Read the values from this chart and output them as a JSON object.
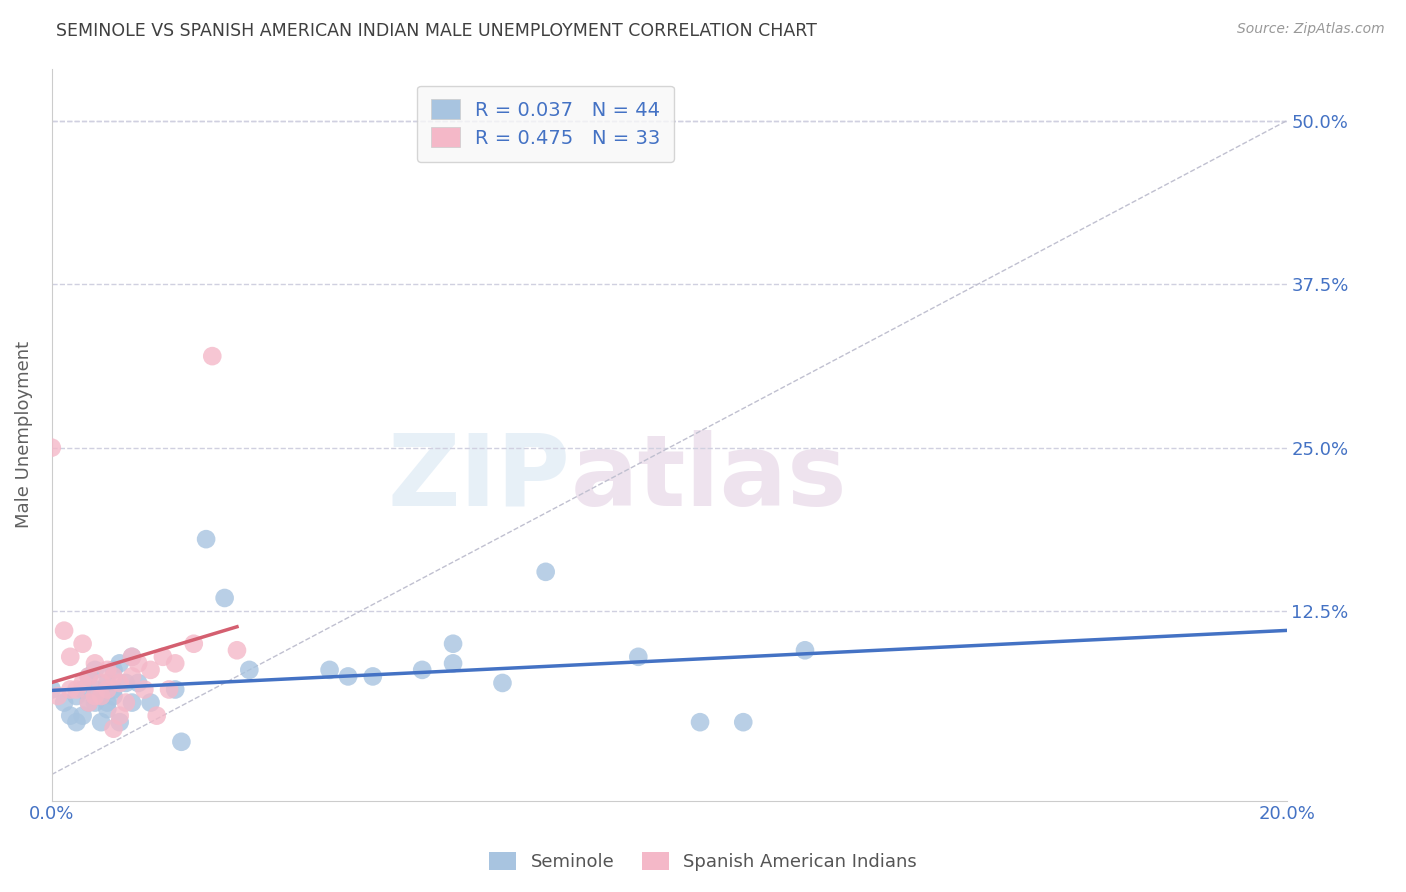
{
  "title": "SEMINOLE VS SPANISH AMERICAN INDIAN MALE UNEMPLOYMENT CORRELATION CHART",
  "source": "Source: ZipAtlas.com",
  "ylabel": "Male Unemployment",
  "xlim": [
    0.0,
    0.2
  ],
  "ylim": [
    -0.02,
    0.54
  ],
  "yticks": [
    0.0,
    0.125,
    0.25,
    0.375,
    0.5
  ],
  "ytick_labels": [
    "",
    "12.5%",
    "25.0%",
    "37.5%",
    "50.0%"
  ],
  "xticks": [
    0.0,
    0.05,
    0.1,
    0.15,
    0.2
  ],
  "xtick_labels": [
    "0.0%",
    "",
    "",
    "",
    "20.0%"
  ],
  "watermark_zip": "ZIP",
  "watermark_atlas": "atlas",
  "seminole_R": 0.037,
  "seminole_N": 44,
  "spanish_R": 0.475,
  "spanish_N": 33,
  "seminole_color": "#a8c4e0",
  "spanish_color": "#f4b8c8",
  "seminole_line_color": "#4472c4",
  "spanish_line_color": "#d45f70",
  "diag_line_color": "#c0c0d0",
  "grid_color": "#d0d0e0",
  "title_color": "#404040",
  "label_color": "#4472c4",
  "seminole_x": [
    0.0,
    0.002,
    0.003,
    0.004,
    0.004,
    0.005,
    0.005,
    0.006,
    0.006,
    0.007,
    0.007,
    0.007,
    0.008,
    0.008,
    0.009,
    0.009,
    0.009,
    0.01,
    0.01,
    0.01,
    0.011,
    0.011,
    0.012,
    0.013,
    0.013,
    0.014,
    0.016,
    0.02,
    0.021,
    0.025,
    0.028,
    0.032,
    0.045,
    0.048,
    0.052,
    0.06,
    0.065,
    0.065,
    0.073,
    0.08,
    0.095,
    0.105,
    0.112,
    0.122
  ],
  "seminole_y": [
    0.065,
    0.055,
    0.045,
    0.04,
    0.06,
    0.045,
    0.065,
    0.055,
    0.075,
    0.055,
    0.065,
    0.08,
    0.04,
    0.06,
    0.055,
    0.07,
    0.05,
    0.06,
    0.065,
    0.08,
    0.04,
    0.085,
    0.07,
    0.055,
    0.09,
    0.07,
    0.055,
    0.065,
    0.025,
    0.18,
    0.135,
    0.08,
    0.08,
    0.075,
    0.075,
    0.08,
    0.085,
    0.1,
    0.07,
    0.155,
    0.09,
    0.04,
    0.04,
    0.095
  ],
  "spanish_x": [
    0.0,
    0.001,
    0.002,
    0.003,
    0.003,
    0.004,
    0.005,
    0.005,
    0.006,
    0.006,
    0.007,
    0.007,
    0.008,
    0.008,
    0.009,
    0.009,
    0.01,
    0.01,
    0.011,
    0.011,
    0.012,
    0.013,
    0.013,
    0.014,
    0.015,
    0.016,
    0.017,
    0.018,
    0.019,
    0.02,
    0.023,
    0.026,
    0.03
  ],
  "spanish_y": [
    0.25,
    0.06,
    0.11,
    0.065,
    0.09,
    0.065,
    0.07,
    0.1,
    0.055,
    0.075,
    0.06,
    0.085,
    0.06,
    0.07,
    0.065,
    0.08,
    0.075,
    0.035,
    0.045,
    0.07,
    0.055,
    0.09,
    0.075,
    0.085,
    0.065,
    0.08,
    0.045,
    0.09,
    0.065,
    0.085,
    0.1,
    0.32,
    0.095
  ],
  "background_color": "#ffffff",
  "legend_box_color": "#f8f8f8"
}
